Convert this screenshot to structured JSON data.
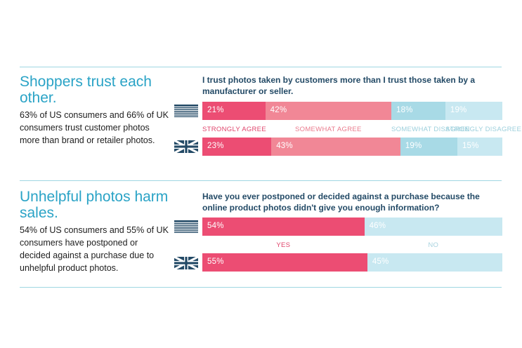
{
  "colors": {
    "strongly_agree": "#ec4d73",
    "somewhat_agree": "#f18796",
    "somewhat_disagree": "#a8dae6",
    "strongly_disagree": "#c8e8f1",
    "yes": "#ec4d73",
    "no": "#c8e8f1",
    "heading": "#2aa3c6",
    "rule": "#9fd6e2"
  },
  "sections": [
    {
      "heading": "Shoppers trust each other.",
      "body": "63% of US consumers and 66% of UK consumers trust customer photos more than brand or retailer photos.",
      "question": "I trust photos taken by customers more than I trust those taken by a manufacturer or seller."
    },
    {
      "heading": "Unhelpful photos harm sales.",
      "body": "54% of US consumers and 55% of UK consumers have postponed or decided against a purchase due to unhelpful product photos.",
      "question": "Have you ever postponed or decided against a purchase because the online product photos didn't give you enough information?"
    }
  ],
  "chart_data": [
    {
      "type": "bar",
      "stacked": "100%",
      "title": "I trust photos taken by customers more than I trust those taken by a manufacturer or seller.",
      "categories": [
        "US",
        "UK"
      ],
      "category_icons": [
        "us-flag-icon",
        "uk-flag-icon"
      ],
      "series": [
        {
          "name": "STRONGLY AGREE",
          "values": [
            21,
            23
          ],
          "labels": [
            "21%",
            "23%"
          ],
          "color": "#ec4d73"
        },
        {
          "name": "SOMEWHAT AGREE",
          "values": [
            42,
            43
          ],
          "labels": [
            "42%",
            "43%"
          ],
          "color": "#f18796"
        },
        {
          "name": "SOMEWHAT DISAGREE",
          "values": [
            18,
            19
          ],
          "labels": [
            "18%",
            "19%"
          ],
          "color": "#a8dae6"
        },
        {
          "name": "STRONGLY DISAGREE",
          "values": [
            19,
            15
          ],
          "labels": [
            "19%",
            "15%"
          ],
          "color": "#c8e8f1"
        }
      ]
    },
    {
      "type": "bar",
      "stacked": "100%",
      "title": "Have you ever postponed or decided against a purchase because the online product photos didn't give you enough information?",
      "categories": [
        "US",
        "UK"
      ],
      "category_icons": [
        "us-flag-icon",
        "uk-flag-icon"
      ],
      "series": [
        {
          "name": "YES",
          "values": [
            54,
            55
          ],
          "labels": [
            "54%",
            "55%"
          ],
          "color": "#ec4d73"
        },
        {
          "name": "NO",
          "values": [
            46,
            45
          ],
          "labels": [
            "46%",
            "45%"
          ],
          "color": "#c8e8f1"
        }
      ]
    }
  ]
}
